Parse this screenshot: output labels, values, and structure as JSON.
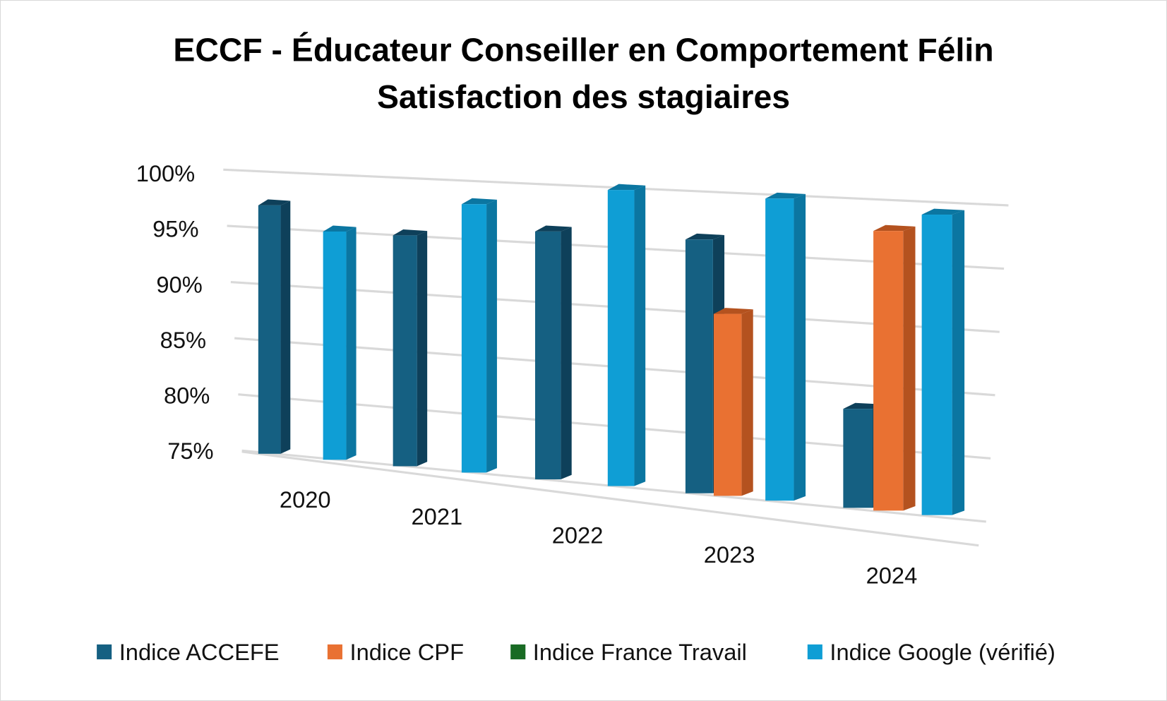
{
  "chart_data": {
    "type": "bar",
    "variant": "3d-clustered-column",
    "title": "ECCF - Éducateur Conseiller en Comportement Félin",
    "subtitle": "Satisfaction des stagiaires",
    "categories": [
      "2020",
      "2021",
      "2022",
      "2023",
      "2024"
    ],
    "series": [
      {
        "name": "Indice ACCEFE",
        "color": "#156082",
        "side": "#0e405a",
        "values": [
          97,
          95,
          96,
          96,
          83
        ]
      },
      {
        "name": "Indice CPF",
        "color": "#e97132",
        "side": "#b4521f",
        "values": [
          null,
          null,
          null,
          90,
          97.5
        ]
      },
      {
        "name": "Indice France Travail",
        "color": "#196b24",
        "side": "#0f4a18",
        "values": [
          null,
          null,
          null,
          null,
          null
        ]
      },
      {
        "name": "Indice Google (vérifié)",
        "color": "#0f9ed5",
        "side": "#0b76a1",
        "values": [
          95,
          98,
          99.8,
          99.7,
          99
        ]
      }
    ],
    "yticks": [
      "100%",
      "95%",
      "90%",
      "85%",
      "80%",
      "75%"
    ],
    "ylim": [
      75,
      100
    ],
    "grid": true,
    "legend": "bottom"
  }
}
